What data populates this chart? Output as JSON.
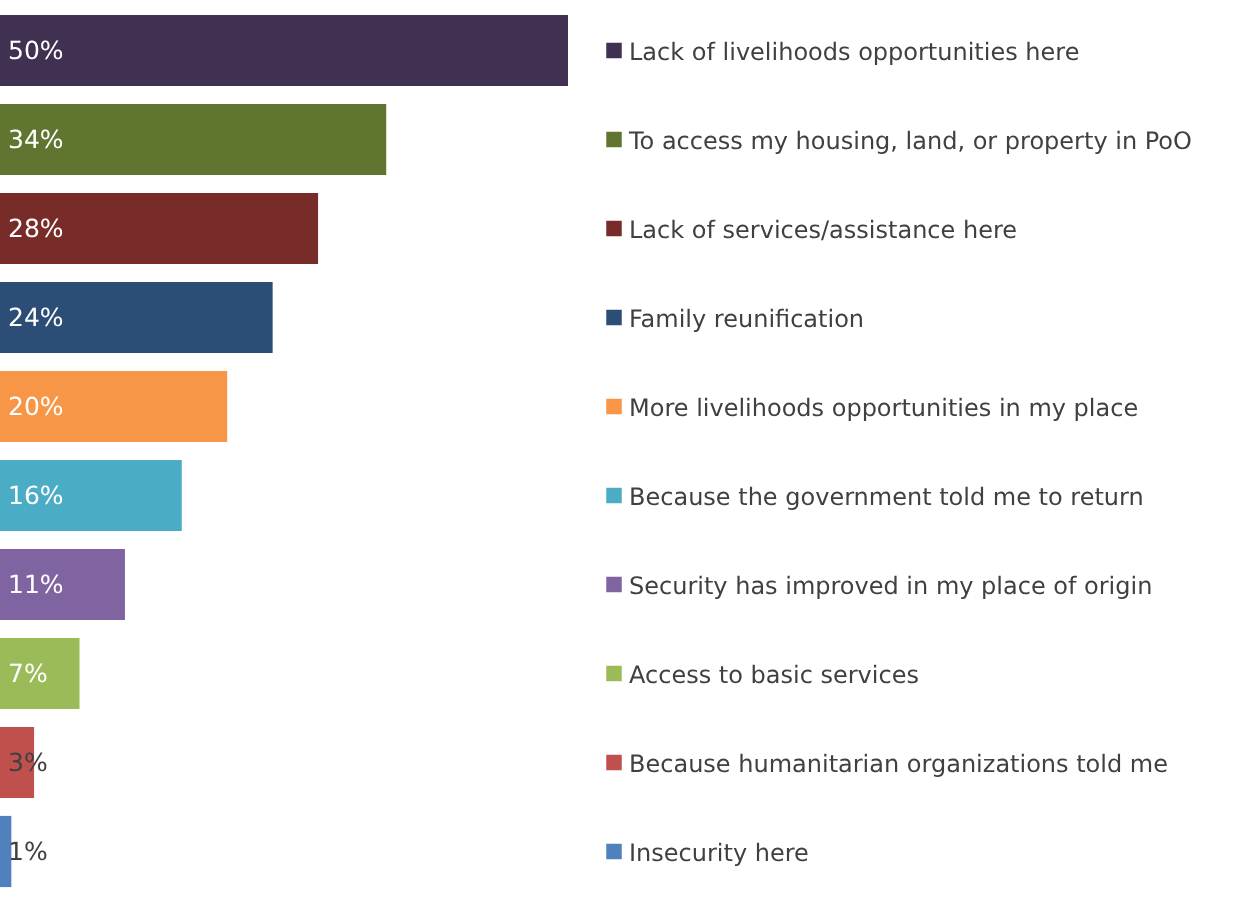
{
  "chart_data": {
    "type": "bar",
    "orientation": "horizontal",
    "tick_labels": "y",
    "categories": [
      "Lack of livelihoods opportunities here",
      "To access my housing, land, or property in PoO",
      "Lack of services/assistance here",
      "Family reunification",
      "More livelihoods opportunities in my place",
      "Because the government told me to return",
      "Security has improved in my place of origin",
      "Access to basic services",
      "Because humanitarian organizations told me",
      "Insecurity here"
    ],
    "values": [
      50,
      34,
      28,
      24,
      20,
      16,
      11,
      7,
      3,
      1
    ],
    "value_labels": [
      "50%",
      "34%",
      "28%",
      "24%",
      "20%",
      "16%",
      "11%",
      "7%",
      "3%",
      "1%"
    ],
    "colors": [
      "#403152",
      "#5f7530",
      "#772c2a",
      "#2c4d75",
      "#f79646",
      "#4bacc6",
      "#8064a2",
      "#9bbb59",
      "#c0504d",
      "#4f81bd"
    ]
  }
}
